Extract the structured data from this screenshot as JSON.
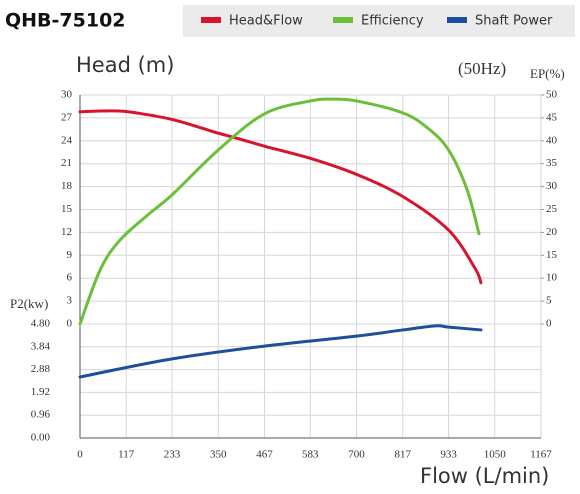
{
  "chart_data": {
    "type": "line",
    "title": "QHB-75102",
    "y_label": "Head (m)",
    "frequency_label": "(50Hz)",
    "y2_label": "EP(%)",
    "y3_label": "P2(kw)",
    "x_label": "Flow (L/min)",
    "xlim": [
      0,
      1167
    ],
    "xticks": [
      0,
      117,
      233,
      350,
      467,
      583,
      700,
      817,
      933,
      1050,
      1167
    ],
    "ylim": [
      0,
      30
    ],
    "yticks": [
      0,
      3,
      6,
      9,
      12,
      15,
      18,
      21,
      24,
      27,
      30
    ],
    "y2lim": [
      0,
      50
    ],
    "y2ticks": [
      0,
      5,
      10,
      15,
      20,
      25,
      30,
      35,
      40,
      45,
      50
    ],
    "y3lim": [
      0,
      4.8
    ],
    "y3ticks": [
      {
        "value": 0,
        "label": "0.00"
      },
      0.96,
      1.92,
      2.88,
      3.84,
      {
        "value": 4.8,
        "label": "4.80"
      }
    ],
    "grid": true,
    "series": [
      {
        "name": "Head&Flow",
        "color": "#d7132e",
        "axis": "y",
        "x": [
          0,
          50,
          100,
          150,
          233,
          300,
          350,
          400,
          467,
          583,
          700,
          817,
          933,
          1000,
          1015
        ],
        "values": [
          27.8,
          27.9,
          27.9,
          27.6,
          26.8,
          25.8,
          25.0,
          24.3,
          23.3,
          21.7,
          19.6,
          16.7,
          12.3,
          7.3,
          5.4
        ]
      },
      {
        "name": "Efficiency",
        "color": "#6cbf3a",
        "axis": "y2",
        "x": [
          0,
          51,
          101,
          177,
          233,
          350,
          467,
          583,
          640,
          700,
          817,
          880,
          933,
          980,
          1010
        ],
        "values": [
          0,
          11.8,
          18.3,
          24.2,
          28.2,
          38,
          45.9,
          48.7,
          49.1,
          48.7,
          46.1,
          42.8,
          38,
          29.3,
          19.7
        ]
      },
      {
        "name": "Shaft Power",
        "color": "#1c4f9c",
        "axis": "y3",
        "x": [
          0,
          233,
          467,
          700,
          817,
          900,
          933,
          1015
        ],
        "values": [
          2.57,
          3.33,
          3.87,
          4.29,
          4.55,
          4.72,
          4.67,
          4.55
        ]
      }
    ]
  }
}
